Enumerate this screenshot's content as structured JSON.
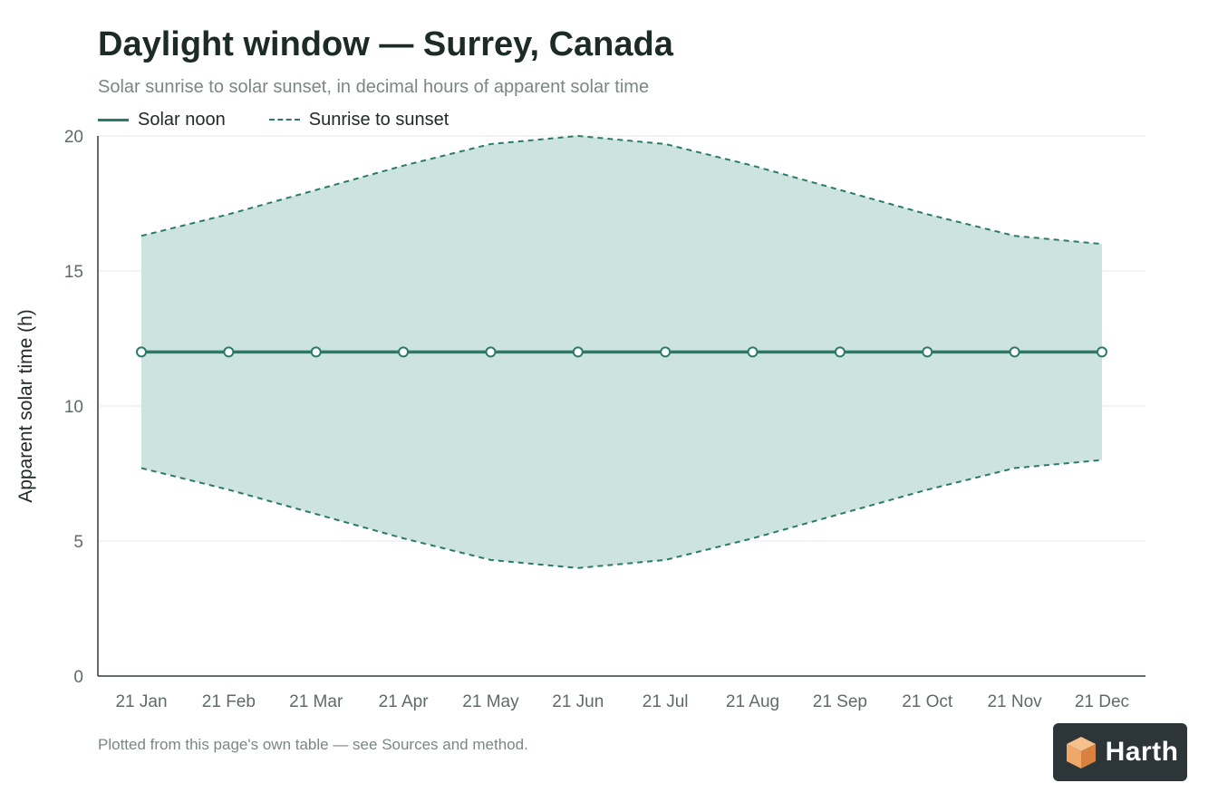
{
  "title": "Daylight window — Surrey, Canada",
  "subtitle": "Solar sunrise to solar sunset, in decimal hours of apparent solar time",
  "legend": {
    "noon_label": "Solar noon",
    "window_label": "Sunrise to sunset"
  },
  "footnote": "Plotted from this page's own table — see Sources and method.",
  "logo": {
    "text": "Harth",
    "icon": "cube-icon"
  },
  "colors": {
    "noon_line": "#2a7a6c",
    "band_fill": "#cde4de",
    "band_edge": "#2a7a6c",
    "logo_bg": "#2c3538",
    "logo_accent": "#f0a868"
  },
  "chart_data": {
    "type": "area",
    "title": "Daylight window — Surrey, Canada",
    "subtitle": "Solar sunrise to solar sunset, in decimal hours of apparent solar time",
    "xlabel": "",
    "ylabel": "Apparent solar time (h)",
    "ylim": [
      0,
      20
    ],
    "yticks": [
      0,
      5,
      10,
      15,
      20
    ],
    "grid": true,
    "legend_position": "top-left",
    "categories": [
      "21 Jan",
      "21 Feb",
      "21 Mar",
      "21 Apr",
      "21 May",
      "21 Jun",
      "21 Jul",
      "21 Aug",
      "21 Sep",
      "21 Oct",
      "21 Nov",
      "21 Dec"
    ],
    "series": [
      {
        "name": "Solar noon",
        "values": [
          12,
          12,
          12,
          12,
          12,
          12,
          12,
          12,
          12,
          12,
          12,
          12
        ]
      },
      {
        "name": "Sunrise to sunset",
        "sunrise": [
          7.7,
          6.9,
          6.0,
          5.1,
          4.3,
          4.0,
          4.3,
          5.1,
          6.0,
          6.9,
          7.7,
          8.0
        ],
        "sunset": [
          16.3,
          17.1,
          18.0,
          18.9,
          19.7,
          20.0,
          19.7,
          18.9,
          18.0,
          17.1,
          16.3,
          16.0
        ]
      }
    ]
  }
}
